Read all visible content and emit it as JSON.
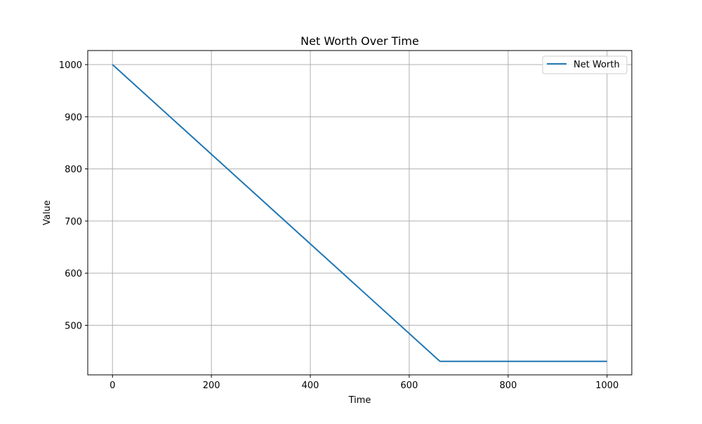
{
  "chart_data": {
    "type": "line",
    "title": "Net Worth Over Time",
    "xlabel": "Time",
    "ylabel": "Value",
    "xlim": [
      -50,
      1050
    ],
    "ylim": [
      405,
      1027
    ],
    "xticks": [
      0,
      200,
      400,
      600,
      800,
      1000
    ],
    "yticks": [
      500,
      600,
      700,
      800,
      900,
      1000
    ],
    "xtick_labels": [
      "0",
      "200",
      "400",
      "600",
      "800",
      "1000"
    ],
    "ytick_labels": [
      "500",
      "600",
      "700",
      "800",
      "900",
      "1000"
    ],
    "grid": true,
    "legend_position": "top-right",
    "series": [
      {
        "name": "Net Worth",
        "color": "#1f77b4",
        "x": [
          0,
          662,
          1000
        ],
        "y": [
          1000,
          431,
          431
        ]
      }
    ]
  }
}
